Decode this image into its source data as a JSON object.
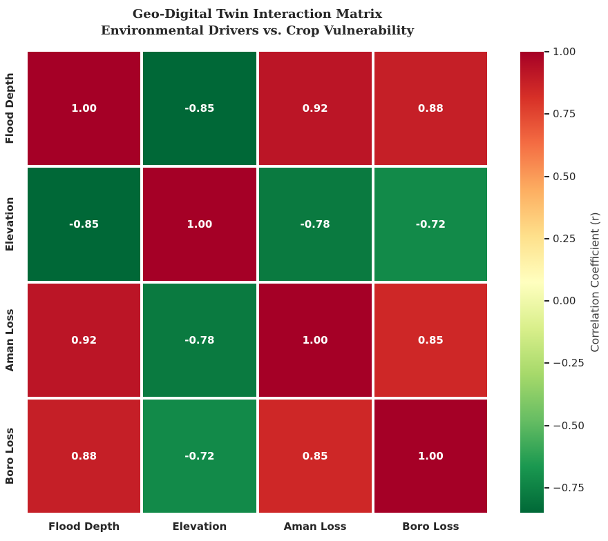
{
  "chart_data": {
    "type": "heatmap",
    "title": "Geo-Digital Twin Interaction Matrix",
    "subtitle": "Environmental Drivers vs. Crop Vulnerability",
    "rows": [
      "Flood Depth",
      "Elevation",
      "Aman Loss",
      "Boro Loss"
    ],
    "columns": [
      "Flood Depth",
      "Elevation",
      "Aman Loss",
      "Boro Loss"
    ],
    "matrix": [
      [
        1.0,
        -0.85,
        0.92,
        0.88
      ],
      [
        -0.85,
        1.0,
        -0.78,
        -0.72
      ],
      [
        0.92,
        -0.78,
        1.0,
        0.85
      ],
      [
        0.88,
        -0.72,
        0.85,
        1.0
      ]
    ],
    "cell_labels": [
      [
        "1.00",
        "-0.85",
        "0.92",
        "0.88"
      ],
      [
        "-0.85",
        "1.00",
        "-0.78",
        "-0.72"
      ],
      [
        "0.92",
        "-0.78",
        "1.00",
        "0.85"
      ],
      [
        "0.88",
        "-0.72",
        "0.85",
        "1.00"
      ]
    ],
    "cell_colors": [
      [
        "#a50026",
        "#006837",
        "#bb1526",
        "#c51f27"
      ],
      [
        "#006837",
        "#a50026",
        "#0a7a40",
        "#128a49"
      ],
      [
        "#bb1526",
        "#0a7a40",
        "#a50026",
        "#ce2727"
      ],
      [
        "#c51f27",
        "#128a49",
        "#ce2727",
        "#a50026"
      ]
    ],
    "colormap": "RdYlGn_r",
    "vmin": -0.85,
    "vmax": 1.0,
    "colorbar_label": "Correlation Coefficient (r)",
    "colorbar_ticks": [
      {
        "label": "1.00",
        "value": 1.0
      },
      {
        "label": "0.75",
        "value": 0.75
      },
      {
        "label": "0.50",
        "value": 0.5
      },
      {
        "label": "0.25",
        "value": 0.25
      },
      {
        "label": "0.00",
        "value": 0.0
      },
      {
        "label": "−0.25",
        "value": -0.25
      },
      {
        "label": "−0.50",
        "value": -0.5
      },
      {
        "label": "−0.75",
        "value": -0.75
      }
    ],
    "colorbar_gradient_bottom_to_top": [
      "#006837",
      "#1a9850",
      "#66bd63",
      "#a6d96a",
      "#d9ef8b",
      "#ffffbf",
      "#fee08b",
      "#fdae61",
      "#f46d43",
      "#d73027",
      "#a50026"
    ],
    "annotation_text_color": "#ffffff",
    "axis_text_color": "#262626",
    "grid_gap_color": "#ffffff",
    "background": "#ffffff",
    "legend_position": "right"
  }
}
